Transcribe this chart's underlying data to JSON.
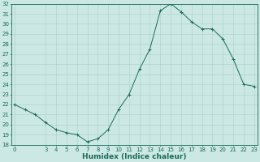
{
  "x": [
    0,
    1,
    2,
    3,
    4,
    5,
    6,
    7,
    8,
    9,
    10,
    11,
    12,
    13,
    14,
    15,
    16,
    17,
    18,
    19,
    20,
    21,
    22,
    23
  ],
  "y": [
    22.0,
    21.5,
    21.0,
    20.2,
    19.5,
    19.2,
    19.0,
    18.3,
    18.6,
    19.5,
    21.5,
    23.0,
    25.5,
    27.5,
    31.3,
    32.0,
    31.2,
    30.2,
    29.5,
    29.5,
    28.5,
    26.5,
    24.0,
    23.8
  ],
  "xlim": [
    -0.3,
    23.3
  ],
  "ylim": [
    18,
    32
  ],
  "yticks": [
    18,
    19,
    20,
    21,
    22,
    23,
    24,
    25,
    26,
    27,
    28,
    29,
    30,
    31,
    32
  ],
  "xticks": [
    0,
    3,
    4,
    5,
    6,
    7,
    8,
    9,
    10,
    11,
    12,
    13,
    14,
    15,
    16,
    17,
    18,
    19,
    20,
    21,
    22,
    23
  ],
  "xlabel": "Humidex (Indice chaleur)",
  "line_color": "#1a6b5a",
  "marker": "+",
  "marker_size": 3,
  "bg_color": "#cce8e4",
  "grid_color": "#aacfc9",
  "label_color": "#1a6b5a",
  "tick_color": "#1a6b5a",
  "spine_color": "#1a6b5a",
  "tick_fontsize": 5.0,
  "xlabel_fontsize": 6.5
}
